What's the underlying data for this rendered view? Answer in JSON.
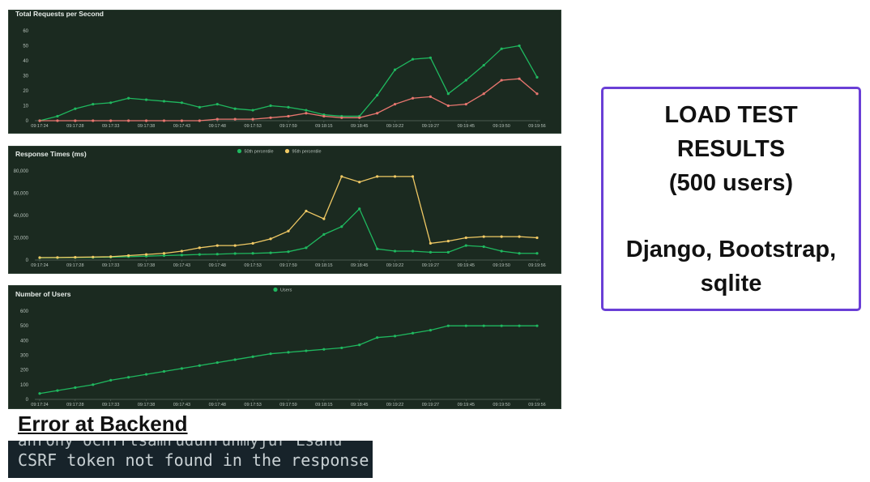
{
  "summary": {
    "line1": "LOAD TEST",
    "line2": "RESULTS",
    "line3": "(500 users)",
    "line4": "Django, Bootstrap,",
    "line5": "sqlite"
  },
  "error": {
    "heading": "Error at Backend",
    "terminal_partial": "ahrohy ochfrtsamruduhrunmyjur Lsahu",
    "terminal_line": "CSRF token not found in the response.",
    "terminal_next": "··"
  },
  "colors": {
    "panel_bg": "#1b2a20",
    "green": "#1fb85f",
    "red": "#e8766f",
    "yellow": "#f0c964",
    "border_accent": "#6a3fd6"
  },
  "chart_data": [
    {
      "type": "line",
      "title": "Total Requests per Second",
      "x_ticks": [
        "09:17:24",
        "09:17:28",
        "09:17:33",
        "09:17:38",
        "09:17:43",
        "09:17:48",
        "09:17:53",
        "09:17:59",
        "09:18:15",
        "09:18:45",
        "09:19:22",
        "09:19:27",
        "09:19:45",
        "09:19:50",
        "09:19:56"
      ],
      "ylim": [
        0,
        60
      ],
      "y_ticks": [
        0,
        10,
        20,
        30,
        40,
        50,
        60
      ],
      "grid": false,
      "series": [
        {
          "values": [
            0,
            3,
            8,
            11,
            12,
            15,
            14,
            13,
            12,
            9,
            11,
            8,
            7,
            10,
            9,
            7,
            4,
            3,
            3,
            17,
            34,
            41,
            42,
            18,
            27,
            37,
            48,
            50,
            29
          ],
          "color": "#1fb85f"
        },
        {
          "values": [
            0,
            0,
            0,
            0,
            0,
            0,
            0,
            0,
            0,
            0,
            1,
            1,
            1,
            2,
            3,
            5,
            3,
            2,
            2,
            5,
            11,
            15,
            16,
            10,
            11,
            18,
            27,
            28,
            18
          ],
          "color": "#e8766f"
        }
      ]
    },
    {
      "type": "line",
      "title": "Response Times (ms)",
      "x_ticks": [
        "09:17:24",
        "09:17:28",
        "09:17:33",
        "09:17:38",
        "09:17:43",
        "09:17:48",
        "09:17:53",
        "09:17:59",
        "09:18:15",
        "09:18:45",
        "09:19:22",
        "09:19:27",
        "09:19:45",
        "09:19:50",
        "09:19:56"
      ],
      "ylim": [
        0,
        80000
      ],
      "y_ticks": [
        0,
        20000,
        40000,
        60000,
        80000
      ],
      "y_tick_labels": [
        "0",
        "20,000",
        "40,000",
        "60,000",
        "80,000"
      ],
      "legend_position": "top-center",
      "series": [
        {
          "name": "50th percentile",
          "color": "#1fb85f",
          "values": [
            2000,
            2100,
            2300,
            2400,
            2600,
            3000,
            3500,
            4000,
            4500,
            5000,
            5300,
            5800,
            6000,
            6500,
            7500,
            11000,
            23000,
            30000,
            46000,
            10000,
            8000,
            8000,
            7000,
            7000,
            13000,
            12000,
            8000,
            6000,
            6000
          ]
        },
        {
          "name": "95th percentile",
          "color": "#f0c964",
          "values": [
            2200,
            2300,
            2500,
            2700,
            3000,
            4000,
            5000,
            6000,
            8000,
            11000,
            13000,
            13000,
            15000,
            19000,
            26000,
            44000,
            37000,
            75000,
            70000,
            75000,
            75000,
            75000,
            15000,
            17000,
            20000,
            21000,
            21000,
            21000,
            20000
          ]
        }
      ]
    },
    {
      "type": "line",
      "title": "Number of Users",
      "x_ticks": [
        "09:17:24",
        "09:17:28",
        "09:17:33",
        "09:17:38",
        "09:17:43",
        "09:17:48",
        "09:17:53",
        "09:17:59",
        "09:18:15",
        "09:18:45",
        "09:19:22",
        "09:19:27",
        "09:19:45",
        "09:19:50",
        "09:19:56"
      ],
      "ylim": [
        0,
        600
      ],
      "y_ticks": [
        0,
        100,
        200,
        300,
        400,
        500,
        600
      ],
      "legend_position": "top-center",
      "series": [
        {
          "name": "Users",
          "color": "#1fb85f",
          "values": [
            40,
            60,
            80,
            100,
            130,
            150,
            170,
            190,
            210,
            230,
            250,
            270,
            290,
            310,
            320,
            330,
            340,
            350,
            370,
            420,
            430,
            450,
            470,
            500,
            500,
            500,
            500,
            500,
            500
          ]
        }
      ]
    }
  ]
}
